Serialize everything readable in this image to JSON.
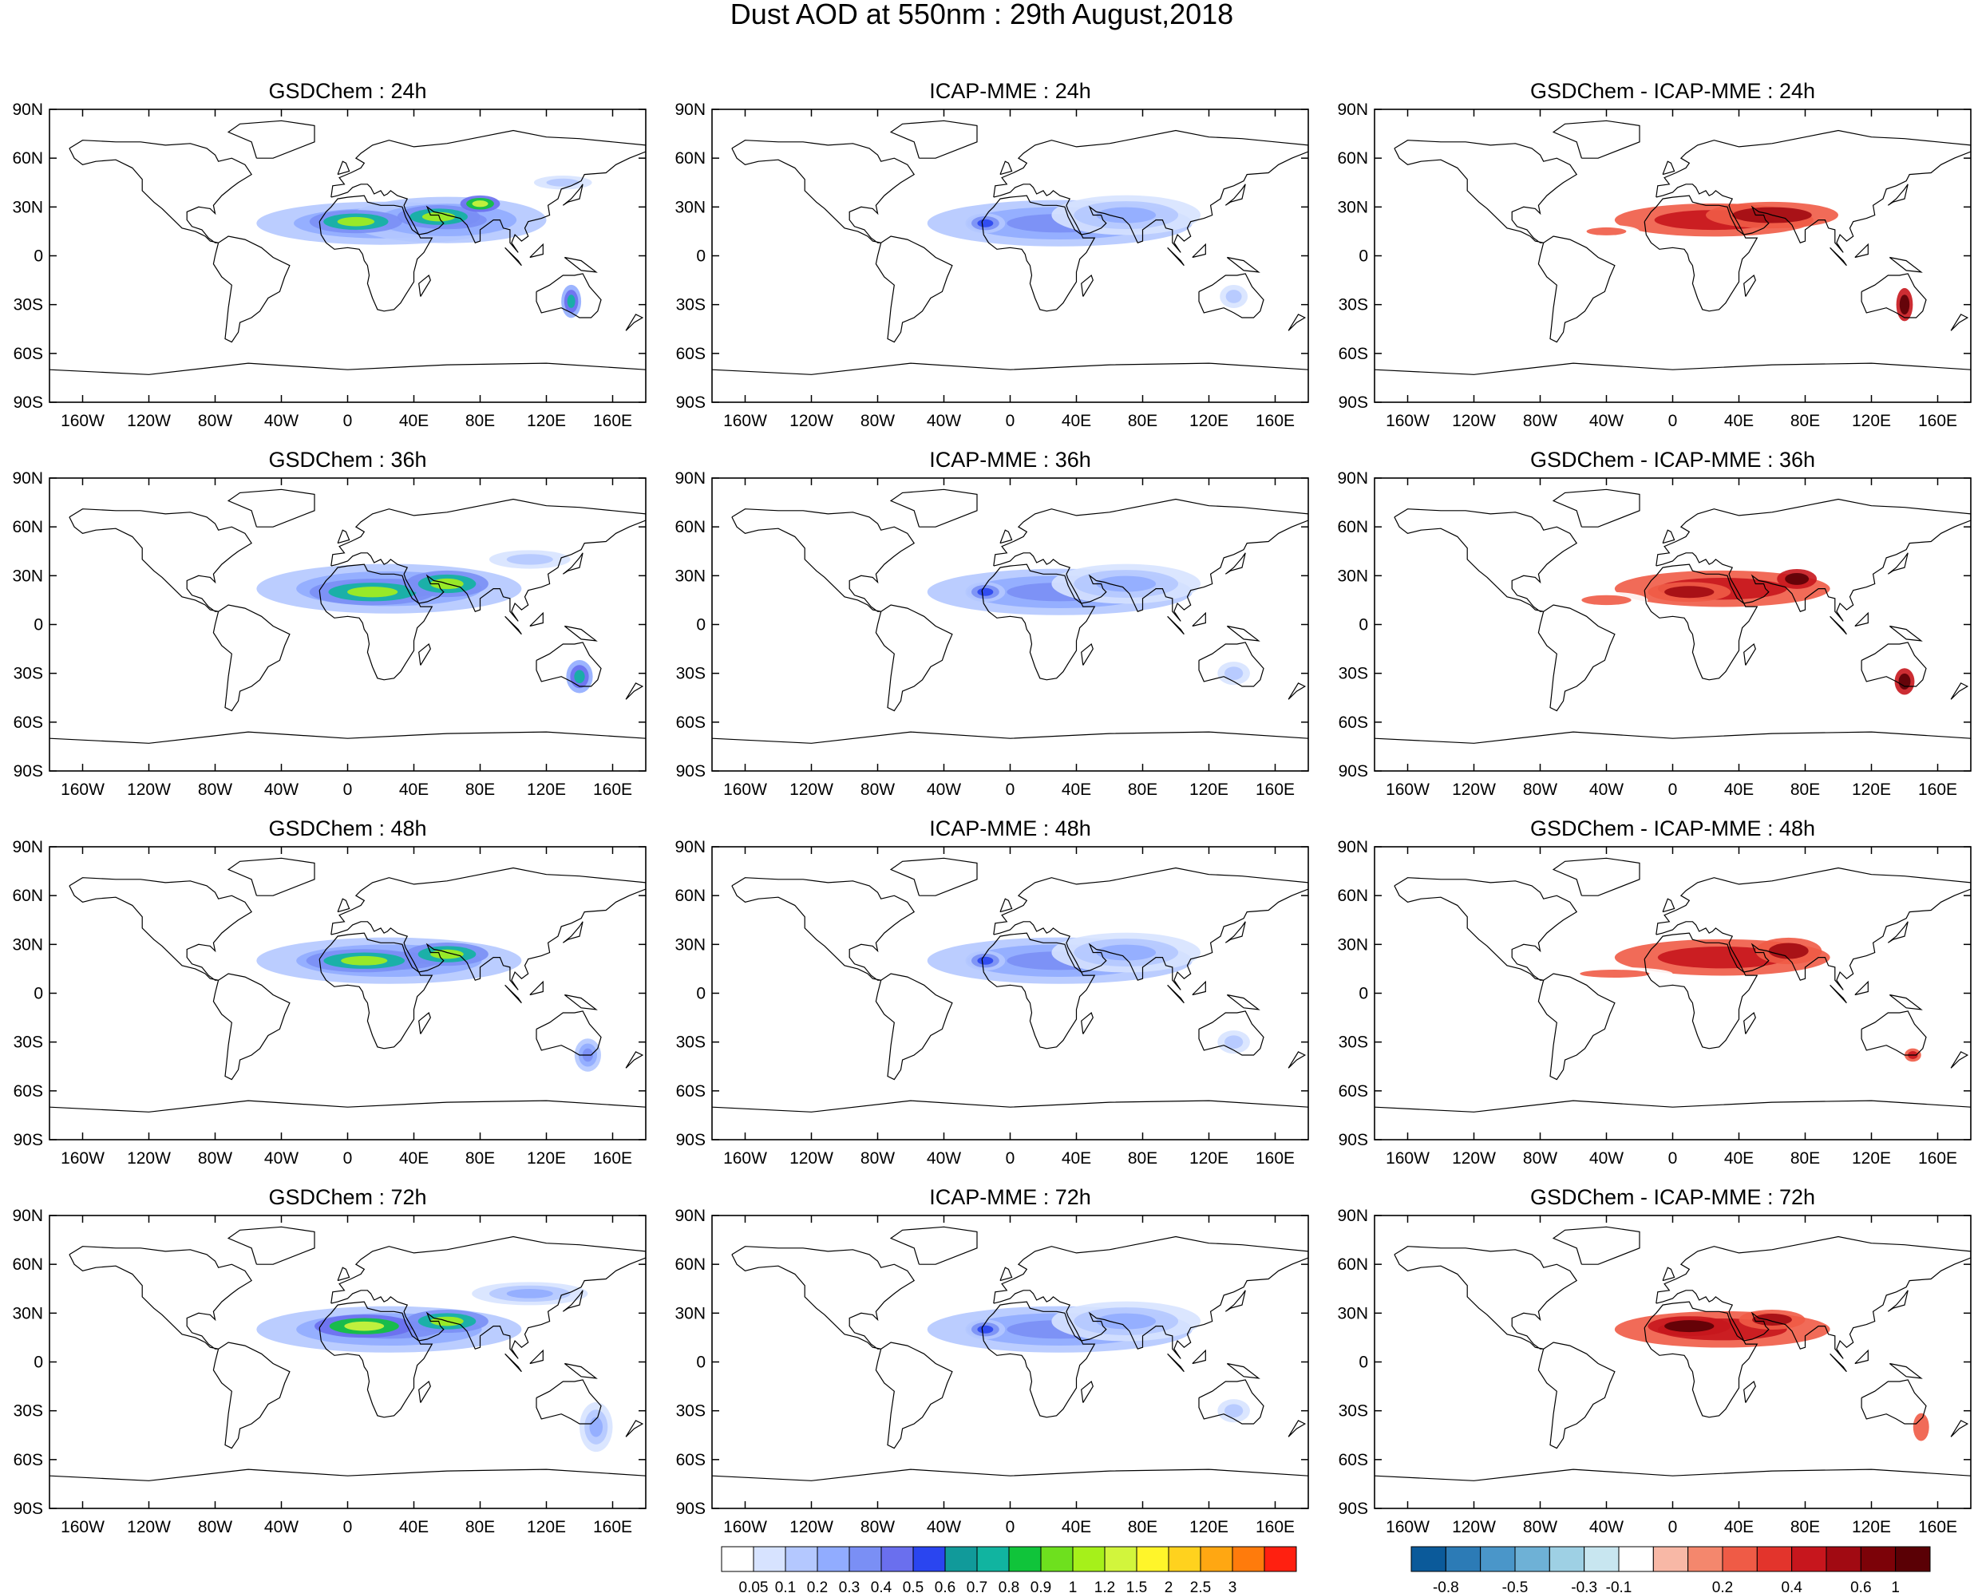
{
  "title": "Dust AOD at 550nm : 29th August,2018",
  "columns": [
    "GSDChem",
    "ICAP-MME",
    "GSDChem - ICAP-MME"
  ],
  "forecast_hours": [
    "24h",
    "36h",
    "48h",
    "72h"
  ],
  "panel_titles": [
    [
      "GSDChem : 24h",
      "ICAP-MME : 24h",
      "GSDChem - ICAP-MME : 24h"
    ],
    [
      "GSDChem : 36h",
      "ICAP-MME : 36h",
      "GSDChem - ICAP-MME : 36h"
    ],
    [
      "GSDChem : 48h",
      "ICAP-MME : 48h",
      "GSDChem - ICAP-MME : 48h"
    ],
    [
      "GSDChem : 72h",
      "ICAP-MME : 72h",
      "GSDChem - ICAP-MME : 72h"
    ]
  ],
  "lat_ticks": [
    "90N",
    "60N",
    "30N",
    "0",
    "30S",
    "60S",
    "90S"
  ],
  "lon_ticks": [
    "160W",
    "120W",
    "80W",
    "40W",
    "0",
    "40E",
    "80E",
    "120E",
    "160E"
  ],
  "colorbar_aod": {
    "labels": [
      "0.05",
      "0.1",
      "0.2",
      "0.3",
      "0.4",
      "0.5",
      "0.6",
      "0.7",
      "0.8",
      "0.9",
      "1",
      "1.2",
      "1.5",
      "2",
      "2.5",
      "3"
    ],
    "colors": [
      "#ffffff",
      "#d7e3ff",
      "#b4c8ff",
      "#91acff",
      "#7a8ff5",
      "#6a6fee",
      "#2a45f0",
      "#119a9a",
      "#11b4a0",
      "#10c43a",
      "#6ee01e",
      "#a6f01a",
      "#d2f53c",
      "#fff52a",
      "#ffd21e",
      "#ffa712",
      "#ff7b0c",
      "#ff2010"
    ]
  },
  "colorbar_diff": {
    "labels": [
      "-0.8",
      "-0.5",
      "-0.3",
      "-0.1",
      "0.2",
      "0.4",
      "0.6",
      "1"
    ],
    "colors": [
      "#0b5a9a",
      "#2c7bb6",
      "#4a96c9",
      "#6eb1d6",
      "#9ed0e4",
      "#c8e6f0",
      "#ffffff",
      "#f8b8a6",
      "#f4876d",
      "#ef5b46",
      "#e3342c",
      "#c7161d",
      "#a10a12",
      "#7c0208",
      "#5a0005"
    ]
  },
  "chart_data": {
    "type": "heatmap",
    "title": "Dust AOD at 550nm : 29th August,2018",
    "layout_grid": "4 rows x 3 columns",
    "xlabel": "",
    "ylabel": "",
    "xlim": [
      -180,
      180
    ],
    "ylim": [
      -90,
      90
    ],
    "x_ticks": [
      "160W",
      "120W",
      "80W",
      "40W",
      "0",
      "40E",
      "80E",
      "120E",
      "160E"
    ],
    "y_ticks": [
      "90N",
      "60N",
      "30N",
      "0",
      "30S",
      "60S",
      "90S"
    ],
    "aod_levels": [
      0.05,
      0.1,
      0.2,
      0.3,
      0.4,
      0.5,
      0.6,
      0.7,
      0.8,
      0.9,
      1,
      1.2,
      1.5,
      2,
      2.5,
      3
    ],
    "diff_levels": [
      -0.8,
      -0.5,
      -0.3,
      -0.1,
      0.2,
      0.4,
      0.6,
      1
    ],
    "fields": [
      {
        "row": 0,
        "col": 0,
        "kind": "aod",
        "blobs": [
          {
            "lon": 20,
            "lat": 20,
            "rlon": 75,
            "rlat": 13,
            "v": 0.3
          },
          {
            "lon": 60,
            "lat": 22,
            "rlon": 60,
            "rlat": 14,
            "v": 0.3
          },
          {
            "lon": 5,
            "lat": 21,
            "rlon": 28,
            "rlat": 7,
            "v": 1.0
          },
          {
            "lon": 55,
            "lat": 24,
            "rlon": 25,
            "rlat": 7,
            "v": 1.0
          },
          {
            "lon": 80,
            "lat": 32,
            "rlon": 12,
            "rlat": 5,
            "v": 1.2
          },
          {
            "lon": 135,
            "lat": -28,
            "rlon": 6,
            "rlat": 10,
            "v": 0.7
          },
          {
            "lon": 130,
            "lat": 45,
            "rlon": 25,
            "rlat": 6,
            "v": 0.1
          }
        ]
      },
      {
        "row": 0,
        "col": 1,
        "kind": "aod",
        "blobs": [
          {
            "lon": 30,
            "lat": 20,
            "rlon": 80,
            "rlat": 14,
            "v": 0.3
          },
          {
            "lon": 70,
            "lat": 25,
            "rlon": 45,
            "rlat": 12,
            "v": 0.2
          },
          {
            "lon": -15,
            "lat": 20,
            "rlon": 12,
            "rlat": 6,
            "v": 0.5
          },
          {
            "lon": 135,
            "lat": -25,
            "rlon": 12,
            "rlat": 10,
            "v": 0.1
          }
        ]
      },
      {
        "row": 0,
        "col": 2,
        "kind": "diff",
        "blobs": [
          {
            "lon": 25,
            "lat": 22,
            "rlon": 60,
            "rlat": 10,
            "v": 0.5
          },
          {
            "lon": 60,
            "lat": 25,
            "rlon": 40,
            "rlat": 8,
            "v": 0.8
          },
          {
            "lon": 140,
            "lat": -30,
            "rlon": 5,
            "rlat": 10,
            "v": 1.0
          },
          {
            "lon": -40,
            "lat": 15,
            "rlon": 20,
            "rlat": 4,
            "v": 0.2
          }
        ]
      },
      {
        "row": 1,
        "col": 0,
        "kind": "aod",
        "blobs": [
          {
            "lon": 25,
            "lat": 22,
            "rlon": 80,
            "rlat": 15,
            "v": 0.3
          },
          {
            "lon": 15,
            "lat": 20,
            "rlon": 38,
            "rlat": 8,
            "v": 1.0
          },
          {
            "lon": 60,
            "lat": 25,
            "rlon": 25,
            "rlat": 8,
            "v": 1.0
          },
          {
            "lon": 140,
            "lat": -32,
            "rlon": 8,
            "rlat": 10,
            "v": 0.7
          },
          {
            "lon": 110,
            "lat": 40,
            "rlon": 35,
            "rlat": 8,
            "v": 0.1
          }
        ]
      },
      {
        "row": 1,
        "col": 1,
        "kind": "aod",
        "blobs": [
          {
            "lon": 30,
            "lat": 20,
            "rlon": 80,
            "rlat": 14,
            "v": 0.3
          },
          {
            "lon": 70,
            "lat": 25,
            "rlon": 45,
            "rlat": 12,
            "v": 0.2
          },
          {
            "lon": -15,
            "lat": 20,
            "rlon": 12,
            "rlat": 6,
            "v": 0.5
          },
          {
            "lon": 135,
            "lat": -30,
            "rlon": 14,
            "rlat": 10,
            "v": 0.1
          }
        ]
      },
      {
        "row": 1,
        "col": 2,
        "kind": "diff",
        "blobs": [
          {
            "lon": 30,
            "lat": 22,
            "rlon": 65,
            "rlat": 11,
            "v": 0.5
          },
          {
            "lon": 10,
            "lat": 20,
            "rlon": 25,
            "rlat": 6,
            "v": 0.8
          },
          {
            "lon": 75,
            "lat": 28,
            "rlon": 12,
            "rlat": 6,
            "v": 1.0
          },
          {
            "lon": 140,
            "lat": -35,
            "rlon": 6,
            "rlat": 8,
            "v": 1.0
          },
          {
            "lon": -40,
            "lat": 15,
            "rlon": 25,
            "rlat": 5,
            "v": 0.2
          }
        ]
      },
      {
        "row": 2,
        "col": 0,
        "kind": "aod",
        "blobs": [
          {
            "lon": 25,
            "lat": 20,
            "rlon": 80,
            "rlat": 14,
            "v": 0.3
          },
          {
            "lon": 10,
            "lat": 20,
            "rlon": 35,
            "rlat": 7,
            "v": 1.0
          },
          {
            "lon": 60,
            "lat": 24,
            "rlon": 25,
            "rlat": 7,
            "v": 1.0
          },
          {
            "lon": 145,
            "lat": -38,
            "rlon": 8,
            "rlat": 10,
            "v": 0.3
          }
        ]
      },
      {
        "row": 2,
        "col": 1,
        "kind": "aod",
        "blobs": [
          {
            "lon": 30,
            "lat": 20,
            "rlon": 80,
            "rlat": 14,
            "v": 0.3
          },
          {
            "lon": 70,
            "lat": 25,
            "rlon": 45,
            "rlat": 12,
            "v": 0.2
          },
          {
            "lon": -15,
            "lat": 20,
            "rlon": 12,
            "rlat": 6,
            "v": 0.5
          },
          {
            "lon": 135,
            "lat": -30,
            "rlon": 14,
            "rlat": 10,
            "v": 0.1
          }
        ]
      },
      {
        "row": 2,
        "col": 2,
        "kind": "diff",
        "blobs": [
          {
            "lon": 30,
            "lat": 22,
            "rlon": 65,
            "rlat": 11,
            "v": 0.5
          },
          {
            "lon": 70,
            "lat": 26,
            "rlon": 20,
            "rlat": 8,
            "v": 0.8
          },
          {
            "lon": -35,
            "lat": 12,
            "rlon": 35,
            "rlat": 4,
            "v": 0.2
          },
          {
            "lon": 145,
            "lat": -38,
            "rlon": 5,
            "rlat": 4,
            "v": 0.5
          }
        ]
      },
      {
        "row": 3,
        "col": 0,
        "kind": "aod",
        "blobs": [
          {
            "lon": 25,
            "lat": 20,
            "rlon": 80,
            "rlat": 14,
            "v": 0.3
          },
          {
            "lon": 10,
            "lat": 22,
            "rlon": 30,
            "rlat": 7,
            "v": 1.2
          },
          {
            "lon": 60,
            "lat": 25,
            "rlon": 25,
            "rlat": 7,
            "v": 1.0
          },
          {
            "lon": 150,
            "lat": -40,
            "rlon": 10,
            "rlat": 15,
            "v": 0.2
          },
          {
            "lon": 110,
            "lat": 42,
            "rlon": 35,
            "rlat": 7,
            "v": 0.2
          }
        ]
      },
      {
        "row": 3,
        "col": 1,
        "kind": "aod",
        "blobs": [
          {
            "lon": 30,
            "lat": 20,
            "rlon": 80,
            "rlat": 14,
            "v": 0.3
          },
          {
            "lon": 70,
            "lat": 25,
            "rlon": 45,
            "rlat": 12,
            "v": 0.2
          },
          {
            "lon": -15,
            "lat": 20,
            "rlon": 12,
            "rlat": 6,
            "v": 0.5
          },
          {
            "lon": 135,
            "lat": -30,
            "rlon": 14,
            "rlat": 10,
            "v": 0.1
          }
        ]
      },
      {
        "row": 3,
        "col": 2,
        "kind": "diff",
        "blobs": [
          {
            "lon": 30,
            "lat": 20,
            "rlon": 65,
            "rlat": 11,
            "v": 0.5
          },
          {
            "lon": 10,
            "lat": 22,
            "rlon": 25,
            "rlat": 6,
            "v": 1.0
          },
          {
            "lon": 60,
            "lat": 26,
            "rlon": 20,
            "rlat": 6,
            "v": 0.8
          },
          {
            "lon": 150,
            "lat": -40,
            "rlon": 8,
            "rlat": 14,
            "v": 0.2
          }
        ]
      }
    ]
  }
}
